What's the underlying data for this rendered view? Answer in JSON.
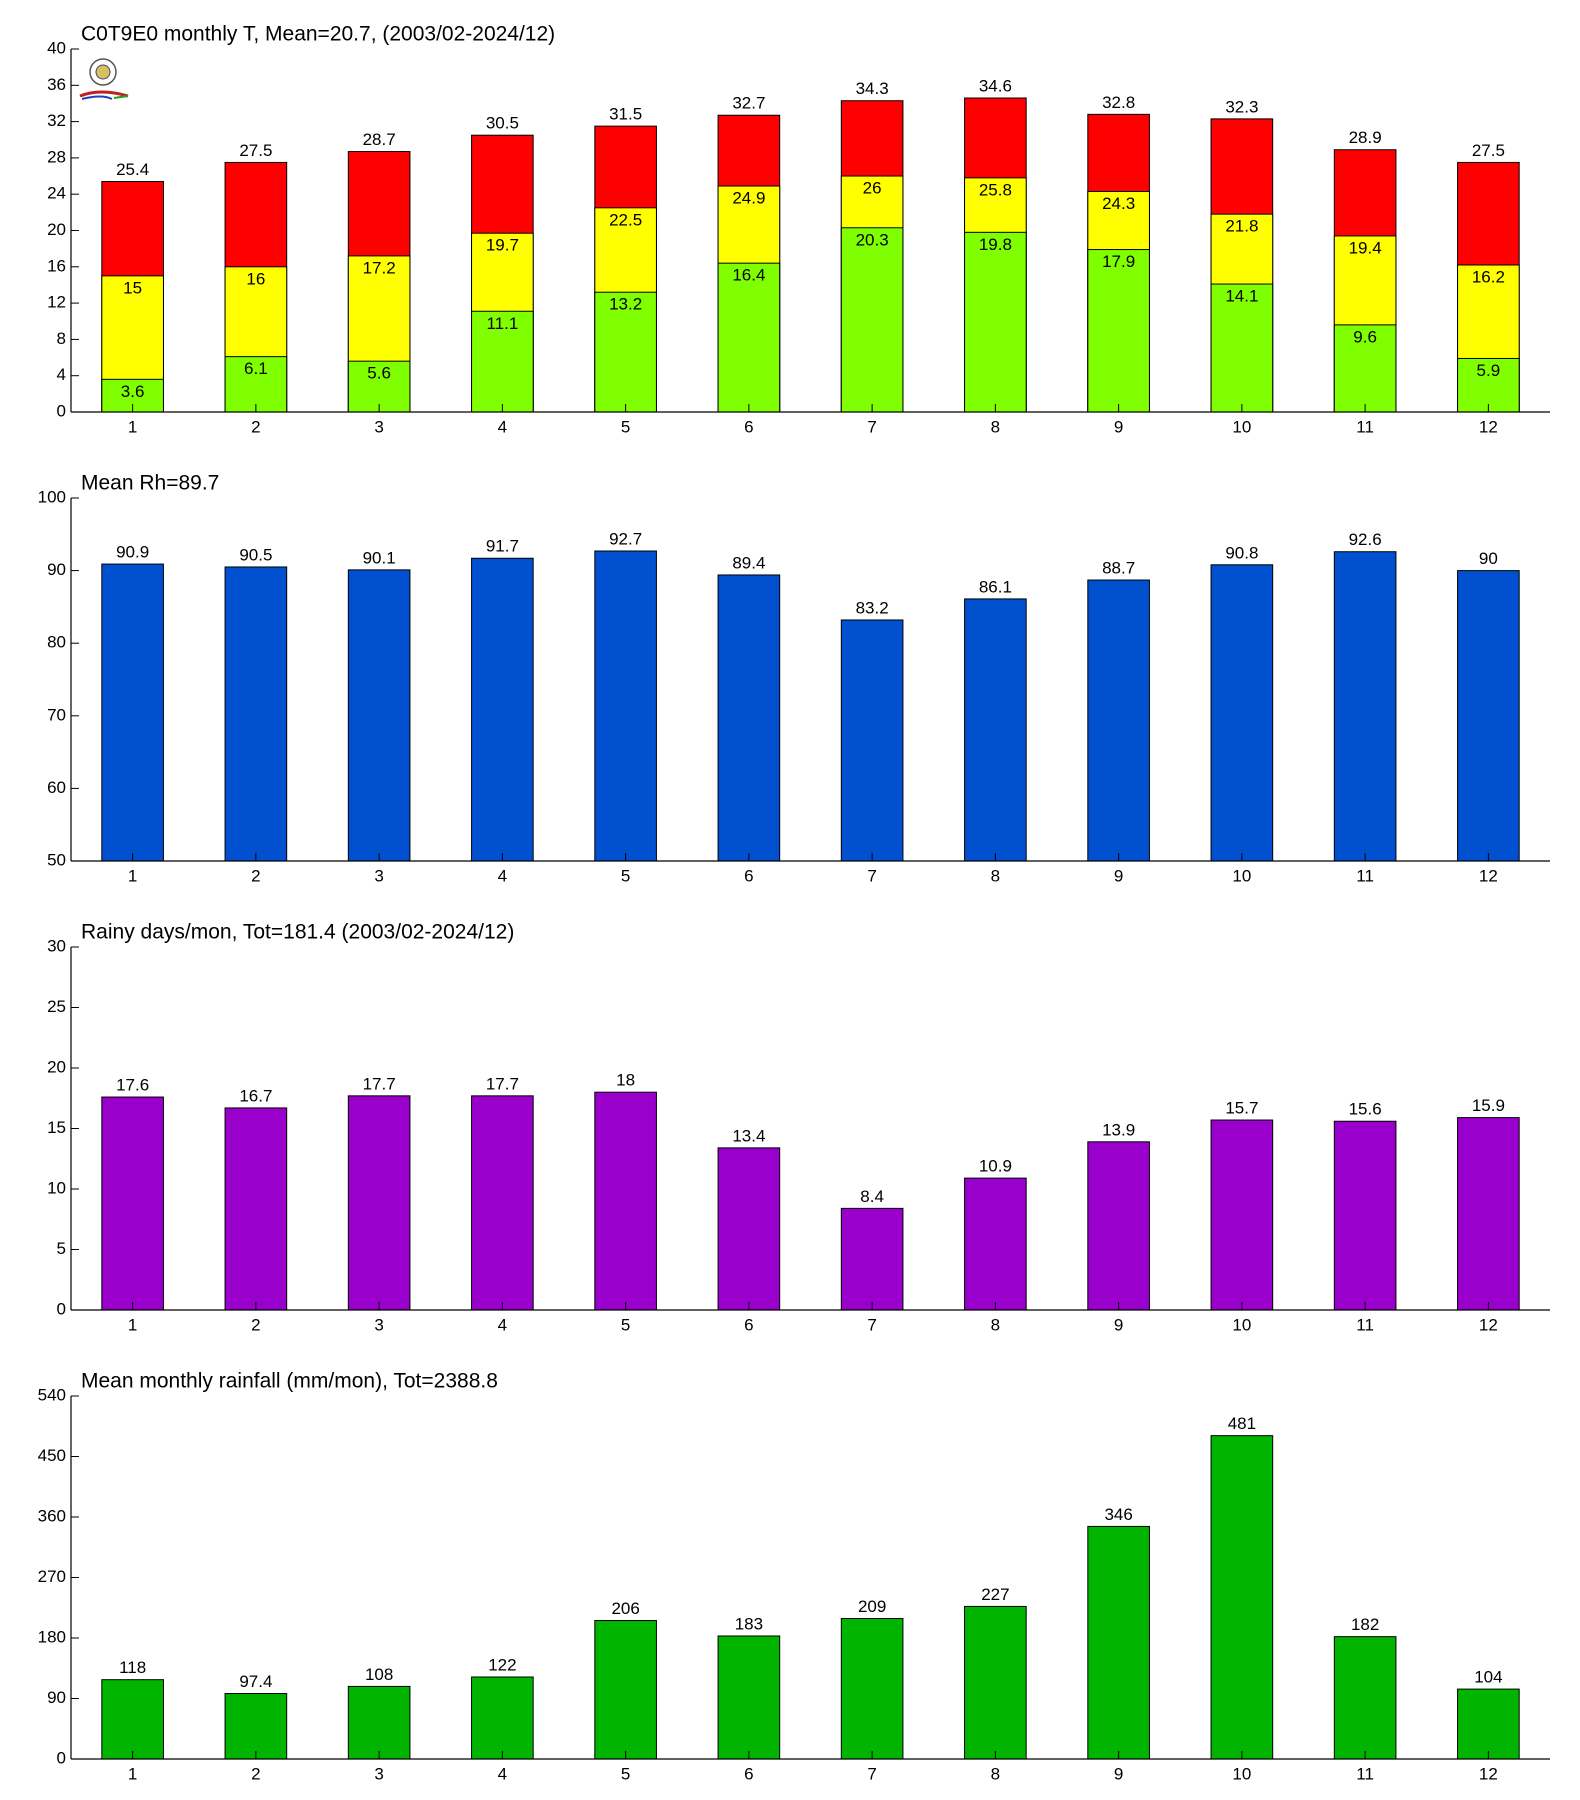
{
  "chart_data": [
    {
      "type": "bar",
      "title": "C0T9E0 monthly T, Mean=20.7, (2003/02-2024/12)",
      "categories": [
        "1",
        "2",
        "3",
        "4",
        "5",
        "6",
        "7",
        "8",
        "9",
        "10",
        "11",
        "12"
      ],
      "series": [
        {
          "color": "#ff0000",
          "values": [
            25.4,
            27.5,
            28.7,
            30.5,
            31.5,
            32.7,
            34.3,
            34.6,
            32.8,
            32.3,
            28.9,
            27.5
          ]
        },
        {
          "color": "#ffff00",
          "values": [
            15,
            16,
            17.2,
            19.7,
            22.5,
            24.9,
            26,
            25.8,
            24.3,
            21.8,
            19.4,
            16.2
          ]
        },
        {
          "color": "#80ff00",
          "values": [
            3.6,
            6.1,
            5.6,
            11.1,
            13.2,
            16.4,
            20.3,
            19.8,
            17.9,
            14.1,
            9.6,
            5.9
          ]
        }
      ],
      "ylim": [
        0,
        40
      ],
      "yticks": [
        0,
        4,
        8,
        12,
        16,
        20,
        24,
        28,
        32,
        36,
        40
      ]
    },
    {
      "type": "bar",
      "title": "Mean Rh=89.7",
      "categories": [
        "1",
        "2",
        "3",
        "4",
        "5",
        "6",
        "7",
        "8",
        "9",
        "10",
        "11",
        "12"
      ],
      "series": [
        {
          "color": "#0050d0",
          "values": [
            90.9,
            90.5,
            90.1,
            91.7,
            92.7,
            89.4,
            83.2,
            86.1,
            88.7,
            90.8,
            92.6,
            90
          ]
        }
      ],
      "ylim": [
        50,
        100
      ],
      "yticks": [
        50,
        60,
        70,
        80,
        90,
        100
      ]
    },
    {
      "type": "bar",
      "title": "Rainy days/mon, Tot=181.4 (2003/02-2024/12)",
      "categories": [
        "1",
        "2",
        "3",
        "4",
        "5",
        "6",
        "7",
        "8",
        "9",
        "10",
        "11",
        "12"
      ],
      "series": [
        {
          "color": "#9900cc",
          "values": [
            17.6,
            16.7,
            17.7,
            17.7,
            18,
            13.4,
            8.4,
            10.9,
            13.9,
            15.7,
            15.6,
            15.9
          ]
        }
      ],
      "ylim": [
        0,
        30
      ],
      "yticks": [
        0,
        5,
        10,
        15,
        20,
        25,
        30
      ]
    },
    {
      "type": "bar",
      "title": "Mean monthly rainfall (mm/mon), Tot=2388.8",
      "categories": [
        "1",
        "2",
        "3",
        "4",
        "5",
        "6",
        "7",
        "8",
        "9",
        "10",
        "11",
        "12"
      ],
      "series": [
        {
          "color": "#00b400",
          "values": [
            118,
            97.4,
            108,
            122,
            206,
            183,
            209,
            227,
            346,
            481,
            182,
            104
          ]
        }
      ],
      "ylim": [
        0,
        540
      ],
      "yticks": [
        0,
        90,
        180,
        270,
        360,
        450,
        540
      ]
    }
  ]
}
